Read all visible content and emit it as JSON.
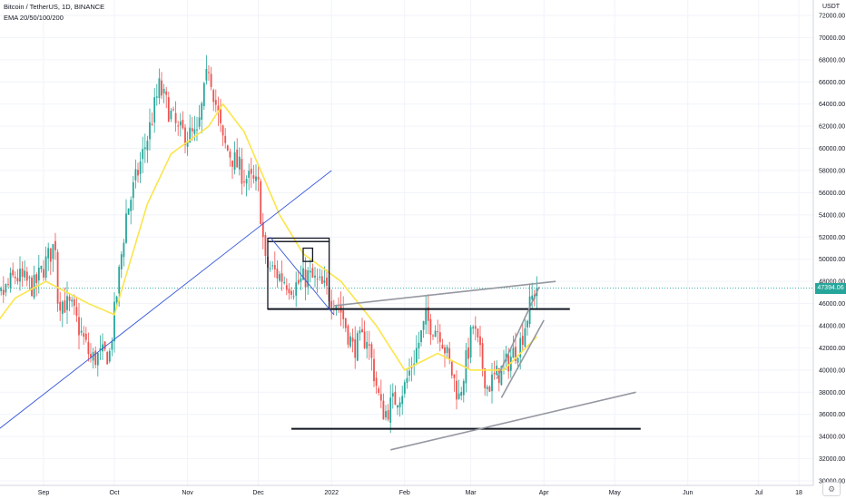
{
  "header": {
    "symbol_line": "Bitcoin / TetherUS, 1D, BINANCE",
    "indicator_line": "EMA 20/50/100/200"
  },
  "axis": {
    "unit": "USDT",
    "current_price": "47394.06",
    "corner_icon": "settings-icon"
  },
  "colors": {
    "up": "#26a69a",
    "down": "#ef5350",
    "ema": "#fbe54a",
    "trendline_blue": "#3b5bdb",
    "channel_gray": "#9598a1",
    "level_black": "#131722",
    "price_line": "#26a69a"
  },
  "chart_data": {
    "type": "candlestick",
    "title": "Bitcoin / TetherUS, 1D, BINANCE",
    "indicator": "EMA 20/50/100/200",
    "ylim": [
      30000,
      72000
    ],
    "y_ticks": [
      30000,
      32000,
      34000,
      36000,
      38000,
      40000,
      42000,
      44000,
      46000,
      48000,
      50000,
      52000,
      54000,
      56000,
      58000,
      60000,
      62000,
      64000,
      66000,
      68000,
      70000,
      72000
    ],
    "y_tick_labels": [
      "30000.00",
      "32000.00",
      "34000.00",
      "36000.00",
      "38000.00",
      "40000.00",
      "42000.00",
      "44000.00",
      "46000.00",
      "48000.00",
      "50000.00",
      "52000.00",
      "54000.00",
      "56000.00",
      "58000.00",
      "60000.00",
      "62000.00",
      "64000.00",
      "66000.00",
      "68000.00",
      "70000.00",
      "72000.00"
    ],
    "x_tick_labels": [
      "Sep",
      "Oct",
      "Nov",
      "Dec",
      "2022",
      "Feb",
      "Mar",
      "Apr",
      "May",
      "Jun",
      "Jul",
      "18"
    ],
    "x_tick_dates": [
      "2021-09-01",
      "2021-10-01",
      "2021-11-01",
      "2021-12-01",
      "2022-01-01",
      "2022-02-01",
      "2022-03-01",
      "2022-04-01",
      "2022-05-01",
      "2022-06-01",
      "2022-07-01",
      "2022-07-18"
    ],
    "last_price": 47394.06,
    "anchors": [
      [
        "2021-08-06",
        44000
      ],
      [
        "2021-08-12",
        46000
      ],
      [
        "2021-08-20",
        48500
      ],
      [
        "2021-08-28",
        47500
      ],
      [
        "2021-09-06",
        51500
      ],
      [
        "2021-09-07",
        46500
      ],
      [
        "2021-09-13",
        45500
      ],
      [
        "2021-09-21",
        41000
      ],
      [
        "2021-09-29",
        41500
      ],
      [
        "2021-10-06",
        54000
      ],
      [
        "2021-10-15",
        61000
      ],
      [
        "2021-10-20",
        65500
      ],
      [
        "2021-10-28",
        61500
      ],
      [
        "2021-11-05",
        61000
      ],
      [
        "2021-11-10",
        67500
      ],
      [
        "2021-11-16",
        60500
      ],
      [
        "2021-11-25",
        57500
      ],
      [
        "2021-12-01",
        56500
      ],
      [
        "2021-12-04",
        49500
      ],
      [
        "2021-12-10",
        48500
      ],
      [
        "2021-12-16",
        47500
      ],
      [
        "2021-12-22",
        48500
      ],
      [
        "2021-12-28",
        47500
      ],
      [
        "2022-01-04",
        46000
      ],
      [
        "2022-01-10",
        42000
      ],
      [
        "2022-01-16",
        43000
      ],
      [
        "2022-01-22",
        36500
      ],
      [
        "2022-01-24",
        36200
      ],
      [
        "2022-02-01",
        38500
      ],
      [
        "2022-02-10",
        44500
      ],
      [
        "2022-02-16",
        43500
      ],
      [
        "2022-02-24",
        37500
      ],
      [
        "2022-03-02",
        44000
      ],
      [
        "2022-03-08",
        38500
      ],
      [
        "2022-03-16",
        40500
      ],
      [
        "2022-03-22",
        42500
      ],
      [
        "2022-03-27",
        46500
      ],
      [
        "2022-03-29",
        47394
      ]
    ],
    "ema_anchors": [
      [
        "2021-08-06",
        42500
      ],
      [
        "2021-08-20",
        46500
      ],
      [
        "2021-09-02",
        48000
      ],
      [
        "2021-09-20",
        46000
      ],
      [
        "2021-10-01",
        45000
      ],
      [
        "2021-10-15",
        55000
      ],
      [
        "2021-10-25",
        59500
      ],
      [
        "2021-11-10",
        62000
      ],
      [
        "2021-11-16",
        64000
      ],
      [
        "2021-11-25",
        61500
      ],
      [
        "2021-12-10",
        54000
      ],
      [
        "2021-12-20",
        50500
      ],
      [
        "2022-01-05",
        48000
      ],
      [
        "2022-01-20",
        44000
      ],
      [
        "2022-02-01",
        40000
      ],
      [
        "2022-02-15",
        41500
      ],
      [
        "2022-03-01",
        40000
      ],
      [
        "2022-03-15",
        40000
      ],
      [
        "2022-03-29",
        43000
      ]
    ],
    "drawings": {
      "horizontal_levels": [
        {
          "price": 45500,
          "from": "2021-12-05",
          "to": "2022-04-12"
        },
        {
          "price": 34700,
          "from": "2021-12-15",
          "to": "2022-05-12"
        }
      ],
      "rectangles": [
        {
          "from": "2021-12-05",
          "to": "2021-12-31",
          "low": 45500,
          "high": 51600
        },
        {
          "from": "2021-12-05",
          "to": "2021-12-31",
          "low": 51600,
          "high": 51900
        },
        {
          "from": "2021-12-20",
          "to": "2021-12-24",
          "low": 49800,
          "high": 51000
        }
      ],
      "trendlines": [
        {
          "name": "long-support",
          "color": "blue",
          "from": [
            "2021-08-06",
            33500
          ],
          "to": [
            "2022-01-01",
            58000
          ]
        },
        {
          "name": "dec-down",
          "color": "blue",
          "from": [
            "2021-12-06",
            52000
          ],
          "to": [
            "2022-01-02",
            45000
          ]
        },
        {
          "name": "channel-upper",
          "color": "gray",
          "from": [
            "2022-01-02",
            45800
          ],
          "to": [
            "2022-04-06",
            48000
          ]
        },
        {
          "name": "channel-lower",
          "color": "gray",
          "from": [
            "2022-01-26",
            32800
          ],
          "to": [
            "2022-05-10",
            38000
          ]
        },
        {
          "name": "rising-wedge-upper",
          "color": "gray",
          "from": [
            "2022-03-12",
            39200
          ],
          "to": [
            "2022-03-30",
            47500
          ]
        },
        {
          "name": "rising-wedge-lower",
          "color": "gray",
          "from": [
            "2022-03-14",
            37500
          ],
          "to": [
            "2022-04-01",
            44500
          ]
        }
      ]
    },
    "grid": true
  }
}
